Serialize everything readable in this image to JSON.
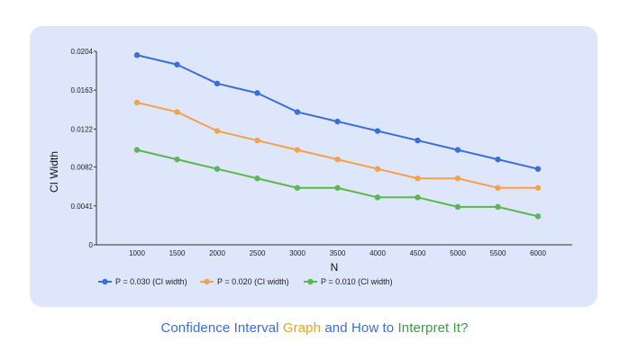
{
  "chart_data": {
    "type": "line",
    "xlabel": "N",
    "ylabel": "CI Width",
    "categories": [
      "1000",
      "1500",
      "2000",
      "2500",
      "3000",
      "3500",
      "4000",
      "4500",
      "5000",
      "5500",
      "6000"
    ],
    "yticks": [
      "0",
      "0.0041",
      "0.0082",
      "0.0122",
      "0.0163",
      "0.0204"
    ],
    "ylim": [
      0,
      0.0204
    ],
    "grid": false,
    "legend_position": "bottom-left",
    "series": [
      {
        "name": "P = 0.030 (CI width)",
        "color": "#3b6fd8",
        "values": [
          0.02,
          0.019,
          0.017,
          0.016,
          0.014,
          0.013,
          0.012,
          0.011,
          0.01,
          0.009,
          0.008
        ]
      },
      {
        "name": "P = 0.020 (CI width)",
        "color": "#f5a04a",
        "values": [
          0.015,
          0.014,
          0.012,
          0.011,
          0.01,
          0.009,
          0.008,
          0.007,
          0.007,
          0.006,
          0.006
        ]
      },
      {
        "name": "P = 0.010 (CI width)",
        "color": "#5bb653",
        "values": [
          0.01,
          0.009,
          0.008,
          0.007,
          0.006,
          0.006,
          0.005,
          0.005,
          0.004,
          0.004,
          0.003
        ]
      }
    ]
  },
  "caption": {
    "part1": "Confidence Interval",
    "part2": "Graph",
    "part3": "and How to",
    "part4": "Interpret It?",
    "color1": "#3b6fd8",
    "color2": "#e8a323",
    "color3": "#3b6fd8",
    "color4": "#3d9b45"
  }
}
